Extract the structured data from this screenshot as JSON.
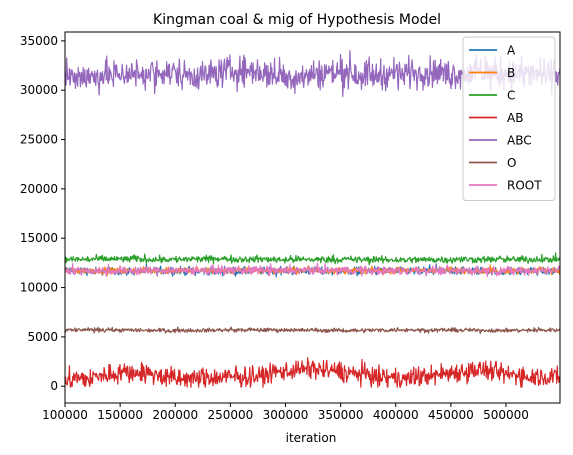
{
  "chart_data": {
    "type": "line",
    "title": "Kingman coal & mig of Hypothesis Model",
    "xlabel": "iteration",
    "ylabel": "",
    "xlim": [
      100000,
      549000
    ],
    "ylim": [
      -1700,
      35900
    ],
    "xticks": [
      100000,
      150000,
      200000,
      250000,
      300000,
      350000,
      400000,
      450000,
      500000
    ],
    "xtick_labels": [
      "100000",
      "150000",
      "200000",
      "250000",
      "300000",
      "350000",
      "400000",
      "450000",
      "500000"
    ],
    "yticks": [
      0,
      5000,
      10000,
      15000,
      20000,
      25000,
      30000,
      35000
    ],
    "ytick_labels": [
      "0",
      "5000",
      "10000",
      "15000",
      "20000",
      "25000",
      "30000",
      "35000"
    ],
    "grid": false,
    "legend_position": "top-right",
    "series": [
      {
        "name": "A",
        "color": "#1f77b4",
        "x": [
          100000,
          150000,
          200000,
          250000,
          300000,
          350000,
          400000,
          450000,
          500000,
          549000
        ],
        "values": [
          11700,
          11650,
          11700,
          11650,
          11700,
          11700,
          11650,
          11700,
          11650,
          11700
        ],
        "band": [
          11000,
          12400
        ]
      },
      {
        "name": "B",
        "color": "#ff7f0e",
        "x": [
          100000,
          150000,
          200000,
          250000,
          300000,
          350000,
          400000,
          450000,
          500000,
          549000
        ],
        "values": [
          11750,
          11700,
          11750,
          11700,
          11750,
          11750,
          11700,
          11750,
          11700,
          11750
        ],
        "band": [
          11200,
          12300
        ]
      },
      {
        "name": "C",
        "color": "#2ca02c",
        "x": [
          100000,
          150000,
          200000,
          250000,
          300000,
          350000,
          400000,
          450000,
          500000,
          549000
        ],
        "values": [
          12850,
          12900,
          12850,
          12900,
          12850,
          12850,
          12800,
          12850,
          12850,
          12850
        ],
        "band": [
          12300,
          13500
        ]
      },
      {
        "name": "AB",
        "color": "#d62728",
        "x": [
          100000,
          125000,
          150000,
          175000,
          200000,
          225000,
          250000,
          275000,
          300000,
          325000,
          350000,
          375000,
          400000,
          425000,
          450000,
          475000,
          500000,
          525000,
          549000
        ],
        "values": [
          700,
          800,
          1500,
          1300,
          700,
          800,
          900,
          1000,
          1600,
          1800,
          1500,
          1100,
          700,
          1000,
          1400,
          1700,
          1200,
          1000,
          1000
        ],
        "band": [
          -100,
          3400
        ]
      },
      {
        "name": "ABC",
        "color": "#9467bd",
        "x": [
          100000,
          125000,
          150000,
          175000,
          200000,
          225000,
          250000,
          275000,
          300000,
          325000,
          350000,
          375000,
          400000,
          425000,
          450000,
          475000,
          500000,
          525000,
          549000
        ],
        "values": [
          31500,
          31300,
          31700,
          31600,
          31800,
          31500,
          32000,
          31900,
          31300,
          31600,
          31900,
          31500,
          31700,
          31900,
          31600,
          31800,
          31700,
          31600,
          31600
        ],
        "band": [
          28800,
          34000
        ]
      },
      {
        "name": "O",
        "color": "#8c564b",
        "x": [
          100000,
          150000,
          200000,
          250000,
          300000,
          350000,
          400000,
          450000,
          500000,
          549000
        ],
        "values": [
          5700,
          5700,
          5650,
          5700,
          5700,
          5650,
          5700,
          5700,
          5650,
          5700
        ],
        "band": [
          5300,
          6000
        ]
      },
      {
        "name": "ROOT",
        "color": "#e377c2",
        "x": [
          100000,
          150000,
          200000,
          250000,
          300000,
          350000,
          400000,
          450000,
          500000,
          549000
        ],
        "values": [
          11750,
          11700,
          11750,
          11750,
          11700,
          11750,
          11700,
          11750,
          11700,
          11750
        ],
        "band": [
          11000,
          12500
        ]
      }
    ]
  }
}
